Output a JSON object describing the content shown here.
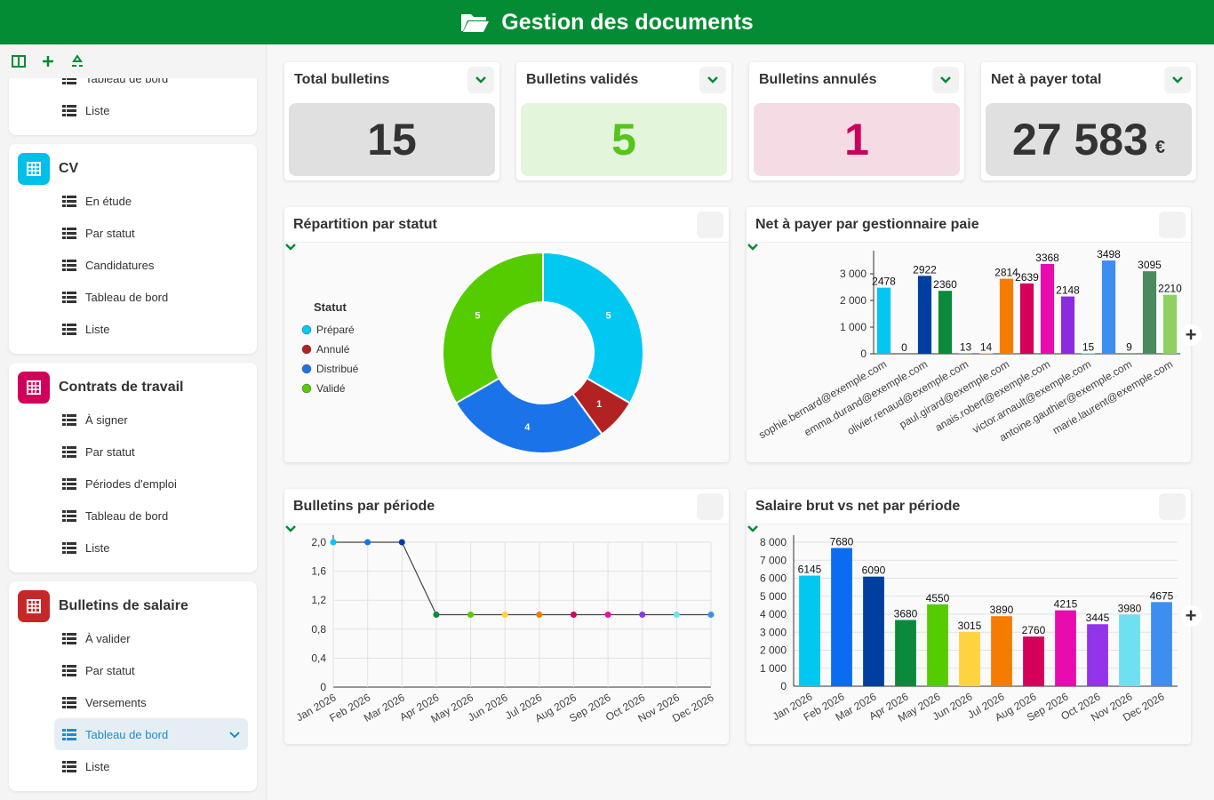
{
  "header": {
    "title": "Gestion des documents"
  },
  "sidebar": {
    "top_items": [
      "Tableau de bord",
      "Liste"
    ],
    "groups": [
      {
        "title": "CV",
        "items": [
          "En étude",
          "Par statut",
          "Candidatures",
          "Tableau de bord",
          "Liste"
        ]
      },
      {
        "title": "Contrats de travail",
        "items": [
          "À signer",
          "Par statut",
          "Périodes d'emploi",
          "Tableau de bord",
          "Liste"
        ]
      },
      {
        "title": "Bulletins de salaire",
        "items": [
          "À valider",
          "Par statut",
          "Versements",
          "Tableau de bord",
          "Liste"
        ]
      }
    ]
  },
  "kpis": [
    {
      "title": "Total bulletins",
      "value": 15
    },
    {
      "title": "Bulletins validés",
      "value": 5
    },
    {
      "title": "Bulletins annulés",
      "value": 1
    },
    {
      "title": "Net à payer total",
      "value": 27583,
      "value_label": "27 583",
      "unit": "€"
    }
  ],
  "charts": [
    {
      "type": "donut",
      "title": "Répartition par statut",
      "legend_title": "Statut",
      "categories": [
        "Préparé",
        "Annulé",
        "Distribué",
        "Validé"
      ],
      "values": [
        5,
        1,
        4,
        5
      ],
      "colors": [
        "#00c8f0",
        "#b22222",
        "#1a73e8",
        "#55cc00"
      ]
    },
    {
      "type": "bar",
      "title": "Net à payer par gestionnaire paie",
      "categories": [
        "sophie.bernard@exemple.com",
        null,
        "emma.durand@exemple.com",
        null,
        "olivier.renaud@exemple.com",
        null,
        "paul.girard@exemple.com",
        null,
        "anais.robert@exemple.com",
        null,
        "victor.arnault@exemple.com",
        null,
        "antoine.gauthier@exemple.com",
        null,
        "marie.laurent@exemple.com"
      ],
      "values": [
        2478,
        0,
        2922,
        2360,
        13,
        14,
        2814,
        2639,
        3368,
        2148,
        15,
        3498,
        9,
        3095,
        2210
      ],
      "colors": [
        "#00c8f0",
        "#1a73e8",
        "#003f9f",
        "#0a8a3a",
        "#55cc00",
        "#ffd23f",
        "#f57c00",
        "#d4005a",
        "#e80cae",
        "#8a2be2",
        "#6ee0f0",
        "#3d8ef0",
        "#2e7d32",
        "#4b8a5e",
        "#8fd061"
      ],
      "ylim": [
        0,
        3600
      ],
      "yticks": [
        0,
        {
          "value": 1000,
          "label": "1 000"
        },
        {
          "value": 2000,
          "label": "2 000"
        },
        {
          "value": 3000,
          "label": "3 000"
        }
      ],
      "grid": false
    },
    {
      "type": "line",
      "title": "Bulletins par période",
      "categories": [
        "Jan 2026",
        "Feb 2026",
        "Mar 2026",
        "Apr 2026",
        "May 2026",
        "Jun 2026",
        "Jul 2026",
        "Aug 2026",
        "Sep 2026",
        "Oct 2026",
        "Nov 2026",
        "Dec 2026"
      ],
      "values": [
        2,
        2,
        2,
        1,
        1,
        1,
        1,
        1,
        1,
        1,
        1,
        1
      ],
      "colors": [
        "#00c8f0",
        "#1a73e8",
        "#003f9f",
        "#0a8a3a",
        "#55cc00",
        "#ffd23f",
        "#f57c00",
        "#d4005a",
        "#e80cae",
        "#9333ea",
        "#6ee0f0",
        "#3d8ef0"
      ],
      "ylim": [
        0,
        2
      ],
      "yticks": [
        0,
        {
          "value": 0.4,
          "label": "0,4"
        },
        {
          "value": 0.8,
          "label": "0,8"
        },
        {
          "value": 1.2,
          "label": "1,2"
        },
        {
          "value": 1.6,
          "label": "1,6"
        },
        {
          "value": 2,
          "label": "2,0"
        }
      ],
      "grid": true
    },
    {
      "type": "bar",
      "title": "Salaire brut vs net par période",
      "categories": [
        "Jan 2026",
        "Feb 2026",
        "Mar 2026",
        "Apr 2026",
        "May 2026",
        "Jun 2026",
        "Jul 2026",
        "Aug 2026",
        "Sep 2026",
        "Oct 2026",
        "Nov 2026",
        "Dec 2026"
      ],
      "values": [
        6145,
        7680,
        6090,
        3680,
        4550,
        3015,
        3890,
        2760,
        4215,
        3445,
        3980,
        4675
      ],
      "colors": [
        "#00c8f0",
        "#0a6cf0",
        "#003f9f",
        "#0a8a3a",
        "#55cc00",
        "#ffd23f",
        "#f57c00",
        "#d4005a",
        "#e80cae",
        "#9333ea",
        "#6ee0f0",
        "#3d8ef0"
      ],
      "ylim": [
        0,
        8000
      ],
      "yticks": [
        0,
        {
          "value": 1000,
          "label": "1 000"
        },
        {
          "value": 2000,
          "label": "2 000"
        },
        {
          "value": 3000,
          "label": "3 000"
        },
        {
          "value": 4000,
          "label": "4 000"
        },
        {
          "value": 5000,
          "label": "5 000"
        },
        {
          "value": 6000,
          "label": "6 000"
        },
        {
          "value": 7000,
          "label": "7 000"
        },
        {
          "value": 8000,
          "label": "8 000"
        }
      ],
      "grid": true
    }
  ]
}
